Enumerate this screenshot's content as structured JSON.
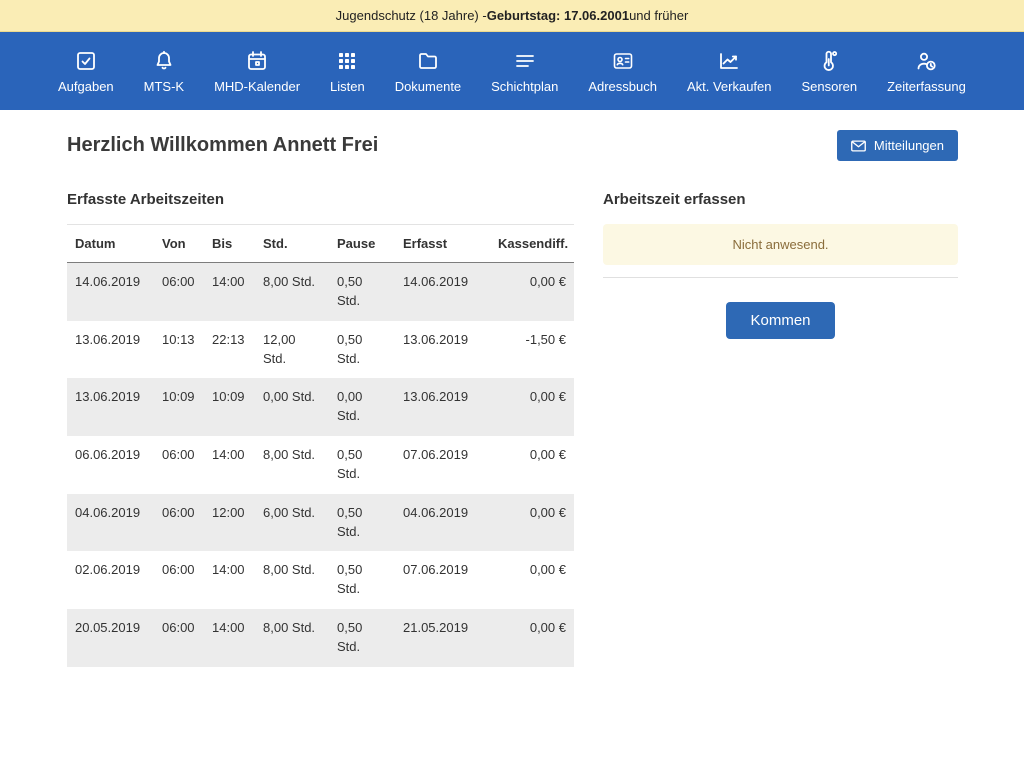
{
  "banner": {
    "prefix": "Jugendschutz (18 Jahre) - ",
    "bold": "Geburtstag: 17.06.2001",
    "suffix": " und früher"
  },
  "nav": {
    "items": [
      {
        "label": "Aufgaben",
        "icon": "check-square-icon"
      },
      {
        "label": "MTS-K",
        "icon": "bell-icon"
      },
      {
        "label": "MHD-Kalender",
        "icon": "calendar-icon"
      },
      {
        "label": "Listen",
        "icon": "grid-icon"
      },
      {
        "label": "Dokumente",
        "icon": "folder-icon"
      },
      {
        "label": "Schichtplan",
        "icon": "menu-lines-icon"
      },
      {
        "label": "Adressbuch",
        "icon": "address-card-icon"
      },
      {
        "label": "Akt. Verkaufen",
        "icon": "line-chart-icon"
      },
      {
        "label": "Sensoren",
        "icon": "thermometer-icon"
      },
      {
        "label": "Zeiterfassung",
        "icon": "user-clock-icon"
      }
    ]
  },
  "header": {
    "title": "Herzlich Willkommen Annett Frei",
    "messages_button": "Mitteilungen"
  },
  "worktimes": {
    "title": "Erfasste Arbeitszeiten",
    "columns": [
      "Datum",
      "Von",
      "Bis",
      "Std.",
      "Pause",
      "Erfasst",
      "Kassendiff."
    ],
    "rows": [
      [
        "14.06.2019",
        "06:00",
        "14:00",
        "8,00 Std.",
        "0,50 Std.",
        "14.06.2019",
        "0,00 €"
      ],
      [
        "13.06.2019",
        "10:13",
        "22:13",
        "12,00 Std.",
        "0,50 Std.",
        "13.06.2019",
        "-1,50 €"
      ],
      [
        "13.06.2019",
        "10:09",
        "10:09",
        "0,00 Std.",
        "0,00 Std.",
        "13.06.2019",
        "0,00 €"
      ],
      [
        "06.06.2019",
        "06:00",
        "14:00",
        "8,00 Std.",
        "0,50 Std.",
        "07.06.2019",
        "0,00 €"
      ],
      [
        "04.06.2019",
        "06:00",
        "12:00",
        "6,00 Std.",
        "0,50 Std.",
        "04.06.2019",
        "0,00 €"
      ],
      [
        "02.06.2019",
        "06:00",
        "14:00",
        "8,00 Std.",
        "0,50 Std.",
        "07.06.2019",
        "0,00 €"
      ],
      [
        "20.05.2019",
        "06:00",
        "14:00",
        "8,00 Std.",
        "0,50 Std.",
        "21.05.2019",
        "0,00 €"
      ]
    ]
  },
  "capture": {
    "title": "Arbeitszeit erfassen",
    "status": "Nicht anwesend.",
    "button": "Kommen"
  },
  "colors": {
    "banner_bg": "#FAEDB5",
    "nav_bg": "#2A64BA",
    "accent_blue": "#2E69B5",
    "row_stripe": "#ECECEC",
    "alert_bg": "#FCF8E3",
    "alert_text": "#8A6D3B"
  }
}
